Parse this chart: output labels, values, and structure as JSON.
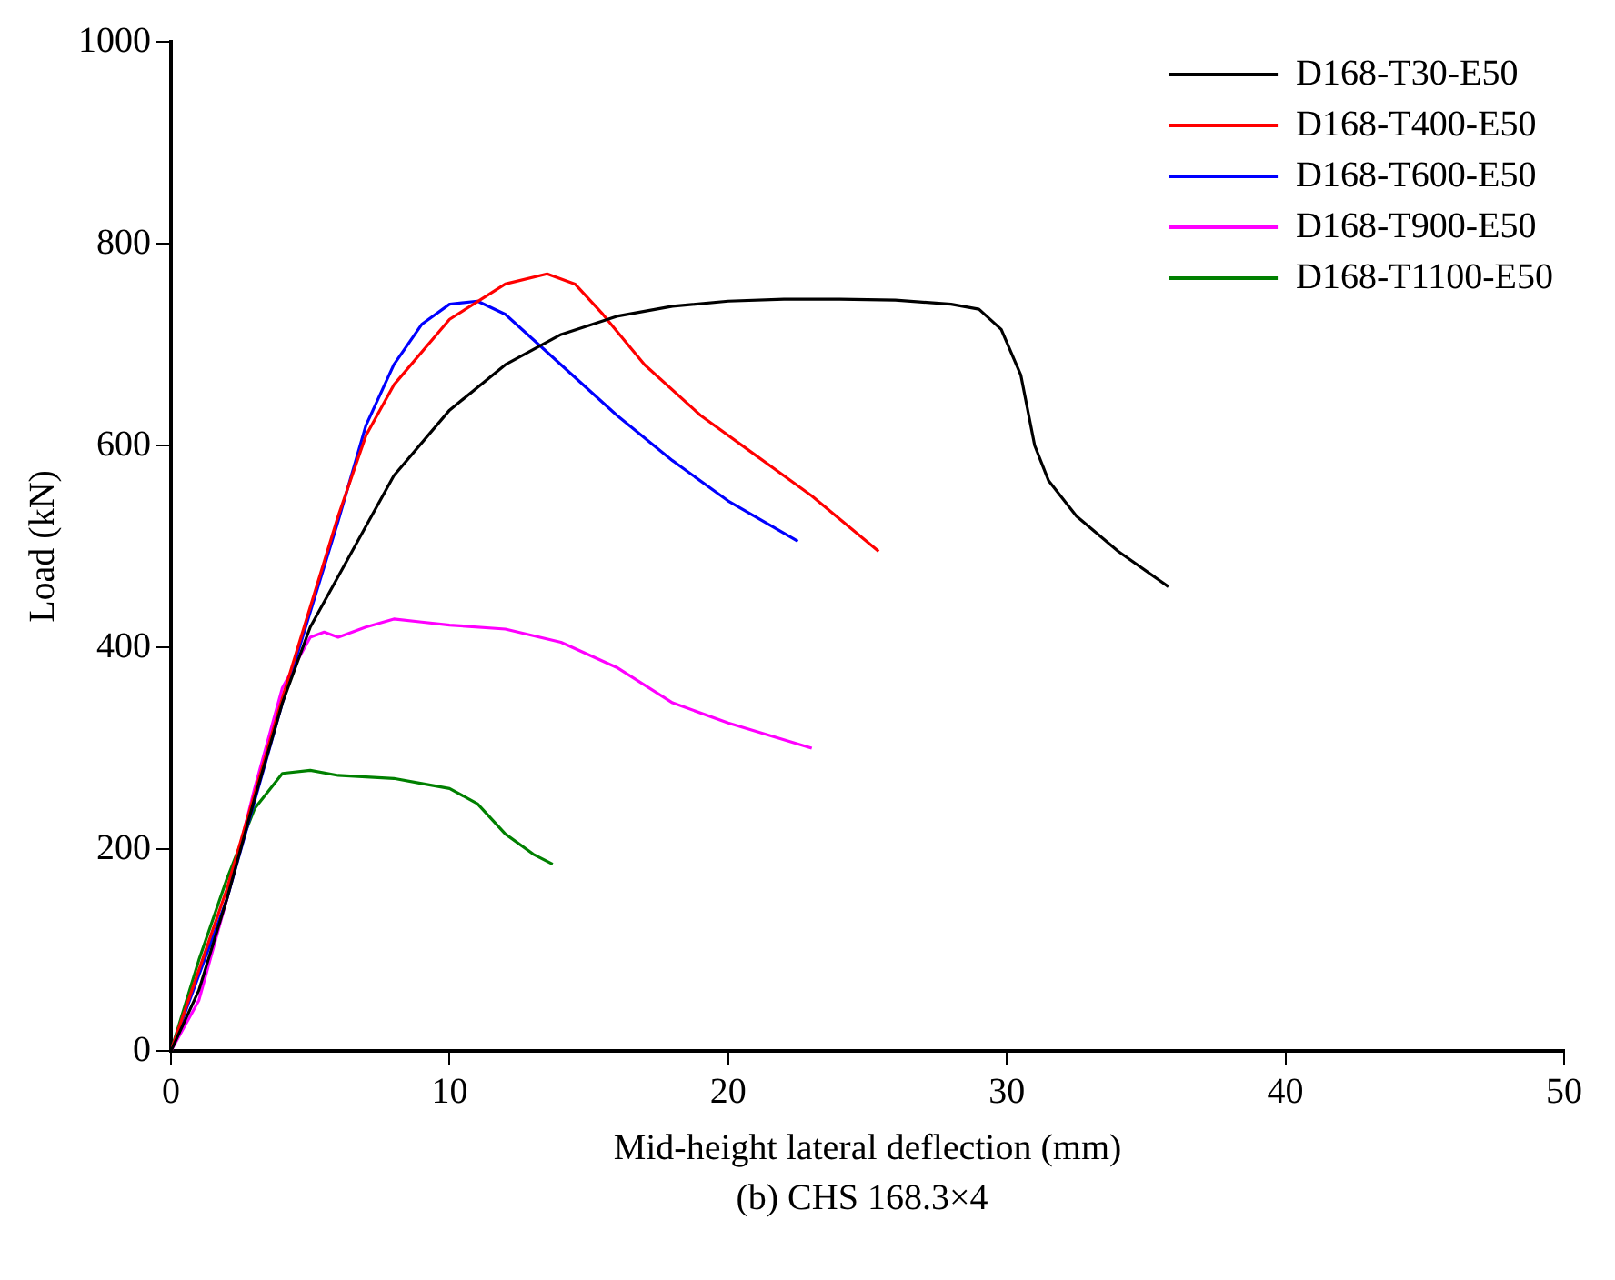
{
  "chart_data": {
    "type": "line",
    "xlabel": "Mid-height lateral deflection (mm)",
    "ylabel": "Load (kN)",
    "annotations": [
      "(b) CHS 168.3×4"
    ],
    "xlim": [
      0,
      50
    ],
    "xticks": [
      0,
      10,
      20,
      30,
      40,
      50
    ],
    "ylim": [
      0,
      1000
    ],
    "yticks": [
      0,
      200,
      400,
      600,
      800,
      1000
    ],
    "grid": false,
    "legend": "top right",
    "marker": "none",
    "line_style": "solid",
    "series": [
      {
        "name": "D168-T30-E50",
        "color": "#000000",
        "x": [
          0,
          1,
          2,
          3,
          4,
          5,
          6,
          8,
          10,
          12,
          14,
          16,
          18,
          20,
          22,
          24,
          26,
          28,
          29,
          29.8,
          30.5,
          31,
          31.5,
          32.5,
          34,
          35.8
        ],
        "values": [
          0,
          60,
          150,
          250,
          345,
          420,
          470,
          570,
          635,
          680,
          710,
          728,
          738,
          743,
          745,
          745,
          744,
          740,
          735,
          715,
          670,
          600,
          565,
          530,
          495,
          460
        ]
      },
      {
        "name": "D168-T400-E50",
        "color": "#ff0000",
        "x": [
          0,
          2,
          4,
          6,
          7,
          8,
          10,
          12,
          13.5,
          14.5,
          15.5,
          17,
          19,
          21,
          23,
          25.4
        ],
        "values": [
          0,
          160,
          350,
          530,
          610,
          660,
          725,
          760,
          770,
          760,
          730,
          680,
          630,
          590,
          550,
          495
        ]
      },
      {
        "name": "D168-T600-E50",
        "color": "#0000ff",
        "x": [
          0,
          2,
          4,
          6,
          7,
          8,
          9,
          10,
          11,
          12,
          13,
          14,
          16,
          18,
          20,
          22.5
        ],
        "values": [
          0,
          150,
          345,
          525,
          620,
          680,
          720,
          740,
          743,
          730,
          705,
          680,
          630,
          585,
          545,
          505
        ]
      },
      {
        "name": "D168-T900-E50",
        "color": "#ff00ff",
        "x": [
          0,
          1,
          2,
          3,
          4,
          5,
          5.5,
          6,
          7,
          8,
          9,
          10,
          12,
          14,
          16,
          18,
          20,
          23
        ],
        "values": [
          0,
          50,
          150,
          260,
          360,
          410,
          415,
          410,
          420,
          428,
          425,
          422,
          418,
          405,
          380,
          345,
          325,
          300
        ]
      },
      {
        "name": "D168-T1100-E50",
        "color": "#008000",
        "x": [
          0,
          1,
          2,
          3,
          4,
          5,
          6,
          8,
          9,
          10,
          11,
          12,
          13,
          13.7
        ],
        "values": [
          0,
          90,
          170,
          240,
          275,
          278,
          273,
          270,
          265,
          260,
          245,
          215,
          195,
          185
        ]
      }
    ]
  }
}
